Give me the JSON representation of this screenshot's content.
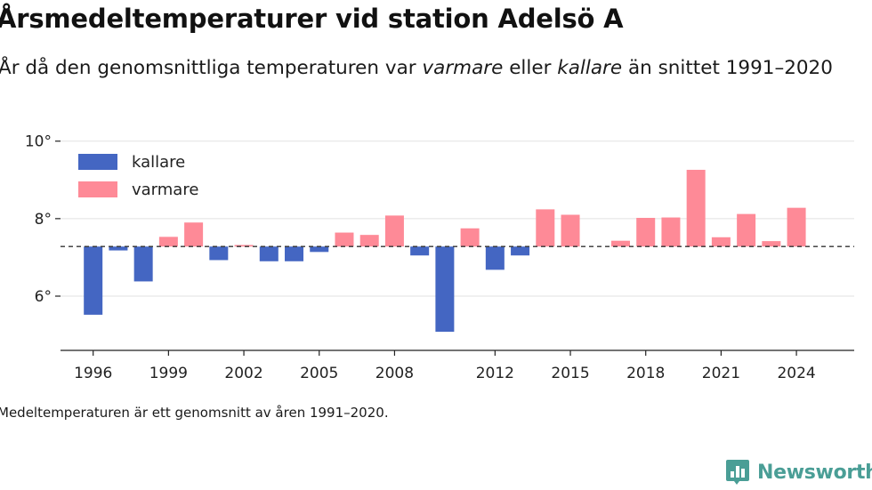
{
  "title": "Årsmedeltemperaturer vid station Adelsö A",
  "subtitle": {
    "prefix": "År då den genomsnittliga temperaturen var ",
    "em1": "varmare",
    "middle": " eller ",
    "em2": "kallare",
    "suffix": " än snittet 1991–2020"
  },
  "footnote": "Medeltemperaturen är ett genomsnitt av åren 1991–2020.",
  "brand": {
    "name": "Newsworthy",
    "color": "#4a9e96",
    "icon": "bar-chart-icon"
  },
  "chart_data": {
    "type": "bar",
    "baseline": 7.28,
    "baseline_style": "dashed",
    "y_range": [
      4.6,
      10.2
    ],
    "x_range": [
      1994.7,
      2026.3
    ],
    "y_ticks": [
      {
        "value": 6,
        "label": "6°"
      },
      {
        "value": 8,
        "label": "8°"
      },
      {
        "value": 10,
        "label": "10°"
      }
    ],
    "x_ticks": [
      1996,
      1999,
      2002,
      2005,
      2008,
      2012,
      2015,
      2018,
      2021,
      2024
    ],
    "grid": true,
    "legend_position": "top-left",
    "legend": [
      {
        "label": "kallare",
        "color": "#4466c2"
      },
      {
        "label": "varmare",
        "color": "#fe8a97"
      }
    ],
    "colors": {
      "kallare": "#4466c2",
      "varmare": "#fe8a97"
    },
    "bars": [
      {
        "year": 1996,
        "value": 5.52
      },
      {
        "year": 1997,
        "value": 7.18
      },
      {
        "year": 1998,
        "value": 6.38
      },
      {
        "year": 1999,
        "value": 7.53
      },
      {
        "year": 2000,
        "value": 7.9
      },
      {
        "year": 2001,
        "value": 6.93
      },
      {
        "year": 2002,
        "value": 7.32
      },
      {
        "year": 2003,
        "value": 6.9
      },
      {
        "year": 2004,
        "value": 6.9
      },
      {
        "year": 2005,
        "value": 7.14
      },
      {
        "year": 2006,
        "value": 7.64
      },
      {
        "year": 2007,
        "value": 7.58
      },
      {
        "year": 2008,
        "value": 8.08
      },
      {
        "year": 2009,
        "value": 7.05
      },
      {
        "year": 2010,
        "value": 5.08
      },
      {
        "year": 2011,
        "value": 7.75
      },
      {
        "year": 2012,
        "value": 6.68
      },
      {
        "year": 2013,
        "value": 7.05
      },
      {
        "year": 2014,
        "value": 8.24
      },
      {
        "year": 2015,
        "value": 8.1
      },
      {
        "year": 2017,
        "value": 7.43
      },
      {
        "year": 2018,
        "value": 8.02
      },
      {
        "year": 2019,
        "value": 8.03
      },
      {
        "year": 2020,
        "value": 9.26
      },
      {
        "year": 2021,
        "value": 7.52
      },
      {
        "year": 2022,
        "value": 8.12
      },
      {
        "year": 2023,
        "value": 7.42
      },
      {
        "year": 2024,
        "value": 8.28
      }
    ]
  }
}
